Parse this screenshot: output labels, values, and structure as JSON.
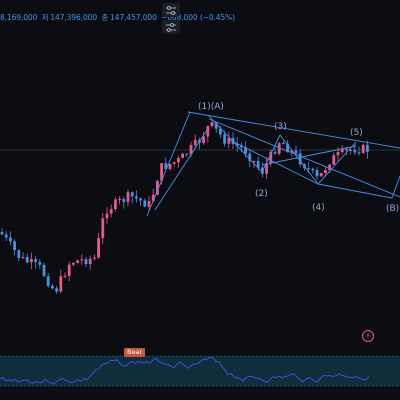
{
  "header": {
    "ohlc_open": "8,169,000",
    "ohlc_high_prefix": "저",
    "ohlc_high": "147,396,000",
    "ohlc_close_prefix": "종",
    "ohlc_close": "147,457,000",
    "ohlc_change": "−668,000 (−0.45%)"
  },
  "toolbar": {
    "buttons": [
      {
        "name": "indicator-settings-icon"
      },
      {
        "name": "object-tree-icon"
      }
    ]
  },
  "wave_labels": {
    "w1A": "(1)(A)",
    "w2": "(2)",
    "w3": "(3)",
    "w4": "(4)",
    "w5": "(5)",
    "wB": "(B)"
  },
  "oscillator": {
    "badge": "Bear"
  },
  "colors": {
    "background": "#0b0d12",
    "bull_candle": "#e25b8b",
    "bear_candle": "#4a90e2",
    "trend_lines": "#4a8fe3",
    "oscillator_line": "#3f4fd8",
    "oscillator_zone": "#0f2e3b"
  }
}
